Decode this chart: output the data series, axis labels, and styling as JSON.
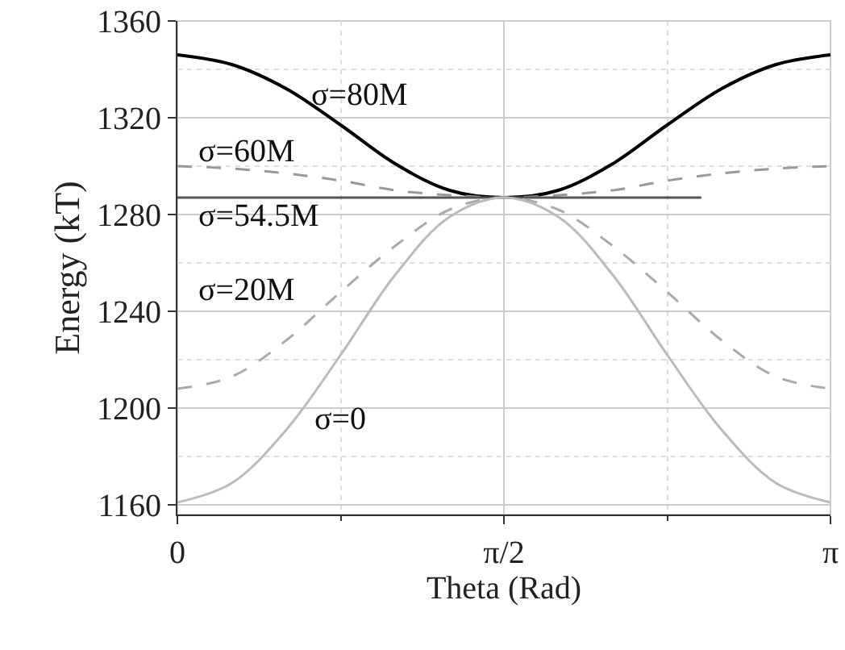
{
  "chart_data": {
    "type": "line",
    "xlabel": "Theta (Rad)",
    "ylabel": "Energy (kT)",
    "x": [
      0,
      0.2618,
      0.5236,
      0.7854,
      1.0472,
      1.309,
      1.5708,
      1.8326,
      2.0944,
      2.3562,
      2.618,
      2.8798,
      3.1416
    ],
    "xlim": [
      0,
      3.1416
    ],
    "xticks": [
      0,
      {
        "value": 1.5708,
        "label": "π/2"
      },
      {
        "value": 3.1416,
        "label": "π"
      }
    ],
    "ylim": [
      1156,
      1360
    ],
    "yticks": [
      1160,
      1200,
      1240,
      1280,
      1320,
      1360
    ],
    "grid": true,
    "legend": false,
    "series": [
      {
        "color": "#000000",
        "line_style": "solid",
        "values": [
          1346,
          1342,
          1332,
          1317,
          1301,
          1290,
          1287,
          1290,
          1301,
          1317,
          1332,
          1342,
          1346
        ]
      },
      {
        "color": "#999999",
        "line_style": "dashed",
        "values": [
          1300,
          1299,
          1297,
          1294,
          1290,
          1288,
          1287,
          1288,
          1290,
          1294,
          1297,
          1299,
          1300
        ]
      },
      {
        "color": "#555555",
        "line_style": "solid",
        "x": [
          0,
          2.52
        ],
        "values": [
          1287,
          1287
        ]
      },
      {
        "color": "#aaaaaa",
        "line_style": "dashed",
        "values": [
          1208,
          1213,
          1228,
          1248,
          1267,
          1282,
          1287,
          1282,
          1267,
          1248,
          1228,
          1213,
          1208
        ]
      },
      {
        "color": "#bbbbbb",
        "line_style": "solid",
        "values": [
          1161,
          1169,
          1191,
          1222,
          1255,
          1279,
          1287,
          1279,
          1255,
          1222,
          1191,
          1169,
          1161
        ]
      }
    ],
    "annotations": [
      "σ=80M",
      "σ=60M",
      "σ=54.5M",
      "σ=20M",
      "σ=0"
    ]
  }
}
